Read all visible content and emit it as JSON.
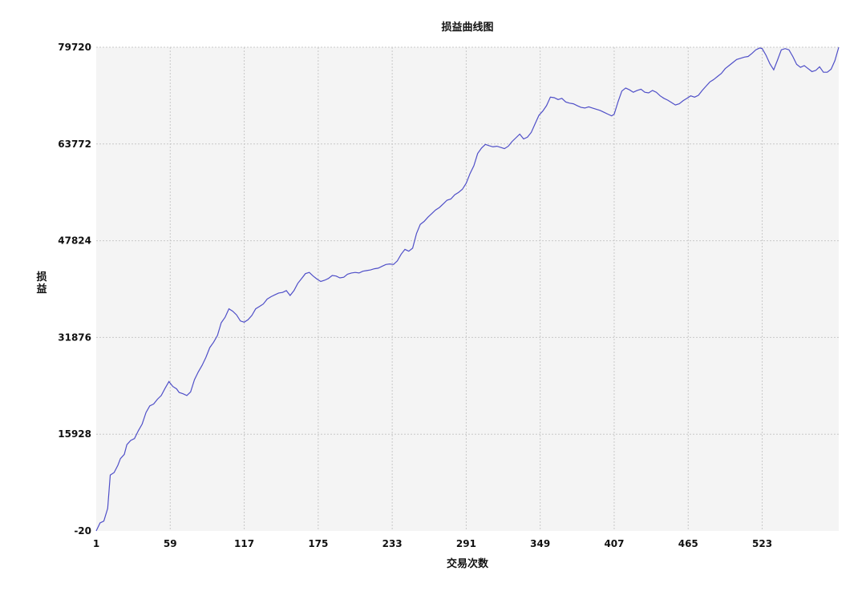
{
  "chart_data": {
    "type": "line",
    "title": "损益曲线图",
    "xlabel": "交易次数",
    "ylabel": "损益",
    "xlim": [
      1,
      583
    ],
    "ylim": [
      -20,
      79720
    ],
    "x_ticks": [
      "1",
      "59",
      "117",
      "175",
      "233",
      "291",
      "349",
      "407",
      "465",
      "523"
    ],
    "y_ticks": [
      "-20",
      "15928",
      "31876",
      "47824",
      "63772",
      "79720"
    ],
    "grid": true,
    "series": [
      {
        "color": "#4f4fc8",
        "points": [
          [
            1,
            -20
          ],
          [
            4,
            1300
          ],
          [
            7,
            1600
          ],
          [
            10,
            3700
          ],
          [
            12,
            9200
          ],
          [
            15,
            9600
          ],
          [
            18,
            10800
          ],
          [
            20,
            11900
          ],
          [
            23,
            12600
          ],
          [
            25,
            14200
          ],
          [
            28,
            14900
          ],
          [
            31,
            15200
          ],
          [
            34,
            16500
          ],
          [
            37,
            17600
          ],
          [
            40,
            19500
          ],
          [
            43,
            20600
          ],
          [
            46,
            20900
          ],
          [
            49,
            21700
          ],
          [
            52,
            22300
          ],
          [
            55,
            23500
          ],
          [
            58,
            24600
          ],
          [
            61,
            23800
          ],
          [
            64,
            23400
          ],
          [
            66,
            22800
          ],
          [
            69,
            22600
          ],
          [
            72,
            22300
          ],
          [
            75,
            22900
          ],
          [
            78,
            24900
          ],
          [
            81,
            26200
          ],
          [
            84,
            27300
          ],
          [
            87,
            28600
          ],
          [
            90,
            30200
          ],
          [
            93,
            31100
          ],
          [
            96,
            32200
          ],
          [
            99,
            34300
          ],
          [
            102,
            35200
          ],
          [
            105,
            36600
          ],
          [
            108,
            36200
          ],
          [
            111,
            35600
          ],
          [
            114,
            34600
          ],
          [
            117,
            34400
          ],
          [
            120,
            34800
          ],
          [
            123,
            35500
          ],
          [
            126,
            36600
          ],
          [
            129,
            37000
          ],
          [
            132,
            37400
          ],
          [
            135,
            38200
          ],
          [
            138,
            38600
          ],
          [
            141,
            38900
          ],
          [
            144,
            39200
          ],
          [
            147,
            39300
          ],
          [
            150,
            39600
          ],
          [
            153,
            38800
          ],
          [
            156,
            39600
          ],
          [
            159,
            40800
          ],
          [
            162,
            41600
          ],
          [
            165,
            42400
          ],
          [
            168,
            42600
          ],
          [
            171,
            42000
          ],
          [
            174,
            41500
          ],
          [
            177,
            41100
          ],
          [
            180,
            41300
          ],
          [
            183,
            41600
          ],
          [
            186,
            42100
          ],
          [
            189,
            42000
          ],
          [
            192,
            41700
          ],
          [
            195,
            41800
          ],
          [
            198,
            42300
          ],
          [
            201,
            42500
          ],
          [
            204,
            42600
          ],
          [
            207,
            42500
          ],
          [
            210,
            42800
          ],
          [
            213,
            42900
          ],
          [
            216,
            43000
          ],
          [
            219,
            43200
          ],
          [
            222,
            43300
          ],
          [
            225,
            43600
          ],
          [
            228,
            43900
          ],
          [
            231,
            44000
          ],
          [
            234,
            43900
          ],
          [
            237,
            44500
          ],
          [
            240,
            45600
          ],
          [
            243,
            46400
          ],
          [
            246,
            46100
          ],
          [
            249,
            46600
          ],
          [
            252,
            49000
          ],
          [
            255,
            50500
          ],
          [
            258,
            51000
          ],
          [
            261,
            51700
          ],
          [
            264,
            52300
          ],
          [
            267,
            52900
          ],
          [
            270,
            53300
          ],
          [
            273,
            53900
          ],
          [
            276,
            54500
          ],
          [
            279,
            54700
          ],
          [
            282,
            55400
          ],
          [
            285,
            55800
          ],
          [
            288,
            56300
          ],
          [
            291,
            57300
          ],
          [
            294,
            58900
          ],
          [
            297,
            60200
          ],
          [
            300,
            62200
          ],
          [
            303,
            63100
          ],
          [
            306,
            63700
          ],
          [
            309,
            63500
          ],
          [
            312,
            63300
          ],
          [
            315,
            63400
          ],
          [
            318,
            63200
          ],
          [
            321,
            63000
          ],
          [
            324,
            63400
          ],
          [
            327,
            64200
          ],
          [
            330,
            64800
          ],
          [
            333,
            65400
          ],
          [
            336,
            64600
          ],
          [
            339,
            64900
          ],
          [
            342,
            65700
          ],
          [
            345,
            67100
          ],
          [
            348,
            68500
          ],
          [
            351,
            69200
          ],
          [
            354,
            70100
          ],
          [
            357,
            71500
          ],
          [
            360,
            71400
          ],
          [
            363,
            71100
          ],
          [
            366,
            71300
          ],
          [
            369,
            70700
          ],
          [
            372,
            70500
          ],
          [
            375,
            70400
          ],
          [
            378,
            70100
          ],
          [
            381,
            69800
          ],
          [
            384,
            69700
          ],
          [
            387,
            69900
          ],
          [
            390,
            69700
          ],
          [
            393,
            69500
          ],
          [
            396,
            69300
          ],
          [
            399,
            69000
          ],
          [
            402,
            68700
          ],
          [
            405,
            68400
          ],
          [
            407,
            68700
          ],
          [
            410,
            70700
          ],
          [
            413,
            72500
          ],
          [
            416,
            73000
          ],
          [
            419,
            72700
          ],
          [
            422,
            72300
          ],
          [
            425,
            72600
          ],
          [
            428,
            72800
          ],
          [
            431,
            72300
          ],
          [
            434,
            72200
          ],
          [
            437,
            72600
          ],
          [
            440,
            72300
          ],
          [
            443,
            71700
          ],
          [
            446,
            71300
          ],
          [
            449,
            71000
          ],
          [
            452,
            70600
          ],
          [
            455,
            70200
          ],
          [
            458,
            70400
          ],
          [
            461,
            70900
          ],
          [
            464,
            71300
          ],
          [
            467,
            71700
          ],
          [
            470,
            71500
          ],
          [
            473,
            71800
          ],
          [
            476,
            72600
          ],
          [
            479,
            73300
          ],
          [
            482,
            74000
          ],
          [
            485,
            74400
          ],
          [
            488,
            74900
          ],
          [
            491,
            75400
          ],
          [
            494,
            76200
          ],
          [
            497,
            76700
          ],
          [
            500,
            77200
          ],
          [
            503,
            77700
          ],
          [
            506,
            77900
          ],
          [
            509,
            78100
          ],
          [
            512,
            78200
          ],
          [
            515,
            78700
          ],
          [
            518,
            79300
          ],
          [
            521,
            79600
          ],
          [
            523,
            79500
          ],
          [
            526,
            78400
          ],
          [
            529,
            77000
          ],
          [
            532,
            76000
          ],
          [
            535,
            77600
          ],
          [
            538,
            79300
          ],
          [
            541,
            79500
          ],
          [
            544,
            79300
          ],
          [
            547,
            78200
          ],
          [
            550,
            76900
          ],
          [
            553,
            76400
          ],
          [
            556,
            76700
          ],
          [
            559,
            76200
          ],
          [
            562,
            75700
          ],
          [
            565,
            75900
          ],
          [
            568,
            76500
          ],
          [
            571,
            75600
          ],
          [
            574,
            75600
          ],
          [
            577,
            76100
          ],
          [
            580,
            77500
          ],
          [
            583,
            79720
          ]
        ]
      }
    ]
  }
}
